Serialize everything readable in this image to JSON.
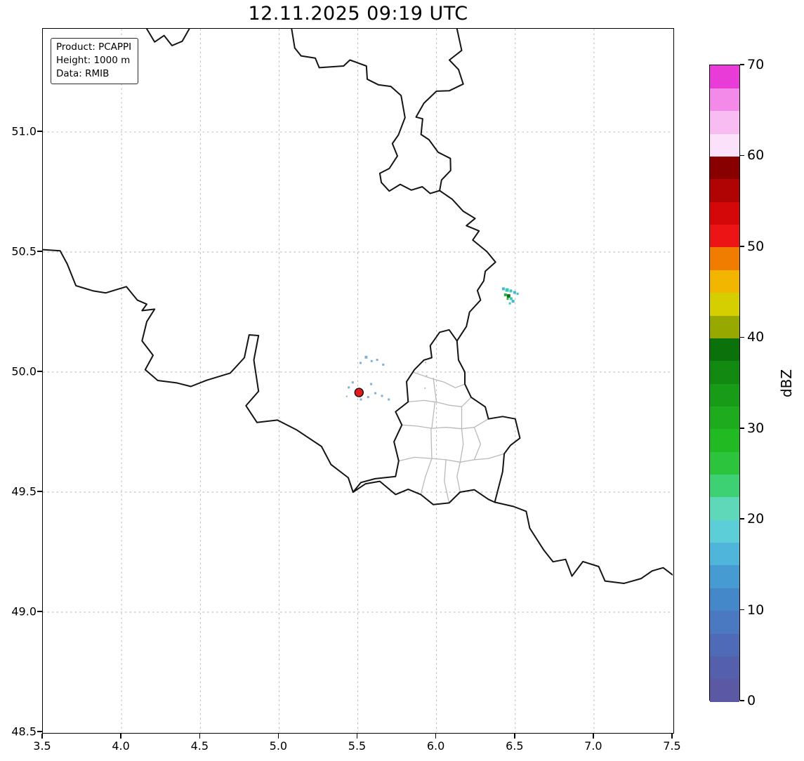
{
  "title": "12.11.2025 09:19 UTC",
  "info_box": {
    "product": "Product: PCAPPI",
    "height": "Height: 1000 m",
    "data": "Data: RMIB"
  },
  "axes": {
    "lon_min": 3.5,
    "lon_max": 7.5,
    "lat_min": 48.5,
    "lat_max": 51.43,
    "x_ticks": [
      "3.5",
      "4.0",
      "4.5",
      "5.0",
      "5.5",
      "6.0",
      "6.5",
      "7.0",
      "7.5"
    ],
    "y_ticks": [
      "48.5",
      "49.0",
      "49.5",
      "50.0",
      "50.5",
      "51.0"
    ],
    "grid_lons": [
      4.0,
      4.5,
      5.0,
      5.5,
      6.0,
      6.5,
      7.0
    ],
    "grid_lats": [
      49.0,
      49.5,
      50.0,
      50.5,
      51.0
    ],
    "grid_on": true
  },
  "colorbar": {
    "label": "dBZ",
    "min": 0,
    "max": 70,
    "ticks": [
      "0",
      "10",
      "20",
      "30",
      "40",
      "50",
      "60",
      "70"
    ],
    "colors_bottom_to_top": [
      "#5b59a4",
      "#5560ad",
      "#4f6bb7",
      "#4a79c1",
      "#4588ca",
      "#459bd2",
      "#4fb5da",
      "#5bced7",
      "#5ed8b9",
      "#3dd173",
      "#2bc43c",
      "#22ba22",
      "#1eac1e",
      "#189c18",
      "#128a12",
      "#0b720b",
      "#97a800",
      "#d5ce00",
      "#f2b600",
      "#f07c00",
      "#ec1414",
      "#d40808",
      "#b00303",
      "#890000",
      "#fbe2fa",
      "#f8bcf3",
      "#f389e8",
      "#e93bd7"
    ]
  },
  "map": {
    "border_color": "#141414",
    "region_border_color": "#b9b9b9",
    "grid_color": "#b3b3b3",
    "country_borders": [
      [
        [
          4.16,
          51.43
        ],
        [
          4.21,
          51.375
        ],
        [
          4.27,
          51.402
        ],
        [
          4.32,
          51.36
        ],
        [
          4.385,
          51.378
        ],
        [
          4.43,
          51.43
        ]
      ],
      [
        [
          5.08,
          51.43
        ],
        [
          5.1,
          51.35
        ],
        [
          5.14,
          51.317
        ],
        [
          5.23,
          51.308
        ],
        [
          5.255,
          51.268
        ],
        [
          5.41,
          51.275
        ],
        [
          5.45,
          51.3
        ],
        [
          5.555,
          51.275
        ],
        [
          5.56,
          51.22
        ],
        [
          5.63,
          51.197
        ],
        [
          5.71,
          51.19
        ],
        [
          5.775,
          51.152
        ],
        [
          5.8,
          51.06
        ],
        [
          5.758,
          50.988
        ],
        [
          5.72,
          50.952
        ],
        [
          5.752,
          50.9
        ],
        [
          5.7,
          50.848
        ],
        [
          5.64,
          50.828
        ],
        [
          5.65,
          50.79
        ],
        [
          5.7,
          50.754
        ],
        [
          5.77,
          50.782
        ],
        [
          5.84,
          50.758
        ],
        [
          5.91,
          50.772
        ],
        [
          5.96,
          50.744
        ],
        [
          6.02,
          50.756
        ]
      ],
      [
        [
          6.02,
          50.756
        ],
        [
          6.032,
          50.8
        ],
        [
          6.09,
          50.84
        ],
        [
          6.088,
          50.89
        ],
        [
          6.01,
          50.916
        ],
        [
          5.952,
          50.968
        ],
        [
          5.902,
          50.99
        ],
        [
          5.912,
          51.055
        ],
        [
          5.87,
          51.062
        ],
        [
          5.92,
          51.12
        ],
        [
          6.0,
          51.17
        ],
        [
          6.082,
          51.172
        ],
        [
          6.17,
          51.2
        ],
        [
          6.14,
          51.26
        ],
        [
          6.082,
          51.3
        ],
        [
          6.16,
          51.34
        ],
        [
          6.13,
          51.43
        ]
      ],
      [
        [
          6.02,
          50.756
        ],
        [
          6.1,
          50.72
        ],
        [
          6.17,
          50.67
        ],
        [
          6.245,
          50.64
        ],
        [
          6.19,
          50.61
        ],
        [
          6.27,
          50.588
        ],
        [
          6.23,
          50.55
        ],
        [
          6.32,
          50.502
        ],
        [
          6.375,
          50.458
        ],
        [
          6.31,
          50.42
        ],
        [
          6.3,
          50.38
        ],
        [
          6.26,
          50.34
        ],
        [
          6.28,
          50.3
        ],
        [
          6.21,
          50.25
        ],
        [
          6.19,
          50.19
        ],
        [
          6.13,
          50.13
        ]
      ],
      [
        [
          3.5,
          50.51
        ],
        [
          3.61,
          50.505
        ],
        [
          3.655,
          50.45
        ],
        [
          3.71,
          50.36
        ],
        [
          3.82,
          50.338
        ],
        [
          3.9,
          50.33
        ],
        [
          4.03,
          50.356
        ],
        [
          4.1,
          50.3
        ],
        [
          4.16,
          50.283
        ],
        [
          4.13,
          50.256
        ],
        [
          4.21,
          50.262
        ],
        [
          4.16,
          50.21
        ],
        [
          4.13,
          50.13
        ],
        [
          4.2,
          50.07
        ],
        [
          4.15,
          50.01
        ],
        [
          4.23,
          49.965
        ],
        [
          4.35,
          49.955
        ],
        [
          4.44,
          49.94
        ],
        [
          4.54,
          49.966
        ],
        [
          4.69,
          49.996
        ],
        [
          4.78,
          50.06
        ],
        [
          4.81,
          50.155
        ],
        [
          4.87,
          50.152
        ],
        [
          4.84,
          50.05
        ],
        [
          4.87,
          49.92
        ],
        [
          4.79,
          49.86
        ],
        [
          4.86,
          49.79
        ],
        [
          4.99,
          49.8
        ],
        [
          5.11,
          49.76
        ],
        [
          5.27,
          49.69
        ],
        [
          5.33,
          49.615
        ],
        [
          5.44,
          49.56
        ],
        [
          5.47,
          49.5
        ]
      ],
      [
        [
          5.47,
          49.5
        ],
        [
          5.55,
          49.535
        ],
        [
          5.64,
          49.545
        ],
        [
          5.74,
          49.49
        ],
        [
          5.82,
          49.512
        ],
        [
          5.9,
          49.49
        ],
        [
          5.98,
          49.448
        ],
        [
          6.08,
          49.455
        ],
        [
          6.15,
          49.5
        ],
        [
          6.24,
          49.51
        ],
        [
          6.33,
          49.47
        ],
        [
          6.37,
          49.458
        ]
      ],
      [
        [
          6.37,
          49.458
        ],
        [
          6.49,
          49.44
        ],
        [
          6.57,
          49.42
        ],
        [
          6.592,
          49.35
        ],
        [
          6.68,
          49.26
        ],
        [
          6.74,
          49.21
        ],
        [
          6.82,
          49.22
        ],
        [
          6.86,
          49.15
        ],
        [
          6.93,
          49.211
        ],
        [
          7.03,
          49.19
        ],
        [
          7.07,
          49.13
        ],
        [
          7.19,
          49.12
        ],
        [
          7.3,
          49.14
        ],
        [
          7.37,
          49.172
        ],
        [
          7.44,
          49.185
        ],
        [
          7.5,
          49.155
        ]
      ],
      [
        [
          5.47,
          49.5
        ],
        [
          5.52,
          49.54
        ],
        [
          5.61,
          49.556
        ],
        [
          5.74,
          49.565
        ],
        [
          5.76,
          49.63
        ],
        [
          5.73,
          49.71
        ],
        [
          5.78,
          49.78
        ],
        [
          5.74,
          49.835
        ],
        [
          5.82,
          49.876
        ],
        [
          5.81,
          49.96
        ],
        [
          5.86,
          50.01
        ],
        [
          5.92,
          50.05
        ],
        [
          5.97,
          50.06
        ],
        [
          5.96,
          50.11
        ],
        [
          6.02,
          50.166
        ],
        [
          6.08,
          50.176
        ],
        [
          6.13,
          50.13
        ]
      ],
      [
        [
          6.13,
          50.13
        ],
        [
          6.14,
          50.05
        ],
        [
          6.18,
          50.0
        ],
        [
          6.18,
          49.95
        ],
        [
          6.22,
          49.895
        ],
        [
          6.31,
          49.855
        ],
        [
          6.33,
          49.805
        ],
        [
          6.42,
          49.815
        ],
        [
          6.5,
          49.805
        ],
        [
          6.53,
          49.725
        ],
        [
          6.47,
          49.695
        ],
        [
          6.43,
          49.66
        ],
        [
          6.42,
          49.585
        ],
        [
          6.37,
          49.458
        ]
      ]
    ],
    "region_borders": [
      [
        [
          5.85,
          50.0
        ],
        [
          5.96,
          49.975
        ],
        [
          6.05,
          49.958
        ],
        [
          6.12,
          49.935
        ],
        [
          6.18,
          49.95
        ]
      ],
      [
        [
          5.82,
          49.876
        ],
        [
          5.92,
          49.882
        ],
        [
          6.0,
          49.875
        ],
        [
          6.08,
          49.862
        ],
        [
          6.16,
          49.856
        ],
        [
          6.22,
          49.895
        ]
      ],
      [
        [
          6.0,
          49.875
        ],
        [
          5.98,
          49.975
        ]
      ],
      [
        [
          5.78,
          49.78
        ],
        [
          5.88,
          49.775
        ],
        [
          5.97,
          49.766
        ],
        [
          6.06,
          49.77
        ],
        [
          6.16,
          49.764
        ],
        [
          6.24,
          49.77
        ],
        [
          6.33,
          49.805
        ]
      ],
      [
        [
          5.97,
          49.766
        ],
        [
          5.99,
          49.875
        ]
      ],
      [
        [
          6.16,
          49.764
        ],
        [
          6.16,
          49.856
        ]
      ],
      [
        [
          5.76,
          49.63
        ],
        [
          5.86,
          49.645
        ],
        [
          5.97,
          49.64
        ],
        [
          6.06,
          49.635
        ],
        [
          6.15,
          49.625
        ],
        [
          6.24,
          49.635
        ],
        [
          6.33,
          49.64
        ],
        [
          6.43,
          49.66
        ]
      ],
      [
        [
          5.97,
          49.64
        ],
        [
          5.965,
          49.766
        ]
      ],
      [
        [
          6.15,
          49.625
        ],
        [
          6.17,
          49.7
        ],
        [
          6.16,
          49.764
        ]
      ],
      [
        [
          6.24,
          49.635
        ],
        [
          6.28,
          49.7
        ],
        [
          6.24,
          49.77
        ]
      ],
      [
        [
          5.9,
          49.49
        ],
        [
          5.93,
          49.565
        ],
        [
          5.97,
          49.64
        ]
      ],
      [
        [
          6.15,
          49.5
        ],
        [
          6.13,
          49.565
        ],
        [
          6.15,
          49.625
        ]
      ],
      [
        [
          6.06,
          49.635
        ],
        [
          6.05,
          49.545
        ],
        [
          6.08,
          49.455
        ]
      ]
    ],
    "radar_marker": {
      "lon": 5.508,
      "lat": 49.915,
      "radius": 6,
      "color": "#e41a1c",
      "edge": "#111111"
    },
    "echoes": [
      {
        "lon": 6.425,
        "lat": 50.347,
        "s": 4,
        "c": "#4ab5d2"
      },
      {
        "lon": 6.448,
        "lat": 50.342,
        "s": 5,
        "c": "#3cc8b6"
      },
      {
        "lon": 6.472,
        "lat": 50.338,
        "s": 4,
        "c": "#3cc8b6"
      },
      {
        "lon": 6.496,
        "lat": 50.332,
        "s": 4,
        "c": "#4ab5d2"
      },
      {
        "lon": 6.515,
        "lat": 50.326,
        "s": 3,
        "c": "#3cc8b6"
      },
      {
        "lon": 6.438,
        "lat": 50.322,
        "s": 4,
        "c": "#2fb03c"
      },
      {
        "lon": 6.458,
        "lat": 50.317,
        "s": 5,
        "c": "#0e6f16"
      },
      {
        "lon": 6.452,
        "lat": 50.305,
        "s": 3,
        "c": "#2fb03c"
      },
      {
        "lon": 6.474,
        "lat": 50.306,
        "s": 4,
        "c": "#3cc8b6"
      },
      {
        "lon": 6.486,
        "lat": 50.295,
        "s": 4,
        "c": "#4ab5d2"
      },
      {
        "lon": 6.466,
        "lat": 50.286,
        "s": 3,
        "c": "#3cc8b6"
      },
      {
        "lon": 5.443,
        "lat": 49.936,
        "s": 3,
        "c": "#7fb0d6"
      },
      {
        "lon": 5.468,
        "lat": 49.957,
        "s": 3,
        "c": "#7fb0d6"
      },
      {
        "lon": 5.518,
        "lat": 50.038,
        "s": 3,
        "c": "#7fb0d6"
      },
      {
        "lon": 5.553,
        "lat": 50.062,
        "s": 4,
        "c": "#7fb0d6"
      },
      {
        "lon": 5.588,
        "lat": 50.046,
        "s": 3,
        "c": "#7fb0d6"
      },
      {
        "lon": 5.623,
        "lat": 50.051,
        "s": 3,
        "c": "#7fb0d6"
      },
      {
        "lon": 5.662,
        "lat": 50.031,
        "s": 3,
        "c": "#7fb0d6"
      },
      {
        "lon": 5.52,
        "lat": 49.886,
        "s": 3,
        "c": "#7fb0d6"
      },
      {
        "lon": 5.566,
        "lat": 49.896,
        "s": 3,
        "c": "#7fb0d6"
      },
      {
        "lon": 5.612,
        "lat": 49.912,
        "s": 3,
        "c": "#7fb0d6"
      },
      {
        "lon": 5.654,
        "lat": 49.901,
        "s": 3,
        "c": "#7fb0d6"
      },
      {
        "lon": 5.697,
        "lat": 49.886,
        "s": 3,
        "c": "#7fb0d6"
      },
      {
        "lon": 5.43,
        "lat": 49.899,
        "s": 2,
        "c": "#7fb0d6"
      },
      {
        "lon": 5.585,
        "lat": 49.95,
        "s": 3,
        "c": "#7fb0d6"
      },
      {
        "lon": 5.93,
        "lat": 50.04,
        "s": 2,
        "c": "#9cc3e0"
      },
      {
        "lon": 5.937,
        "lat": 49.985,
        "s": 2,
        "c": "#9cc3e0"
      },
      {
        "lon": 5.927,
        "lat": 49.933,
        "s": 2,
        "c": "#9cc3e0"
      }
    ]
  }
}
